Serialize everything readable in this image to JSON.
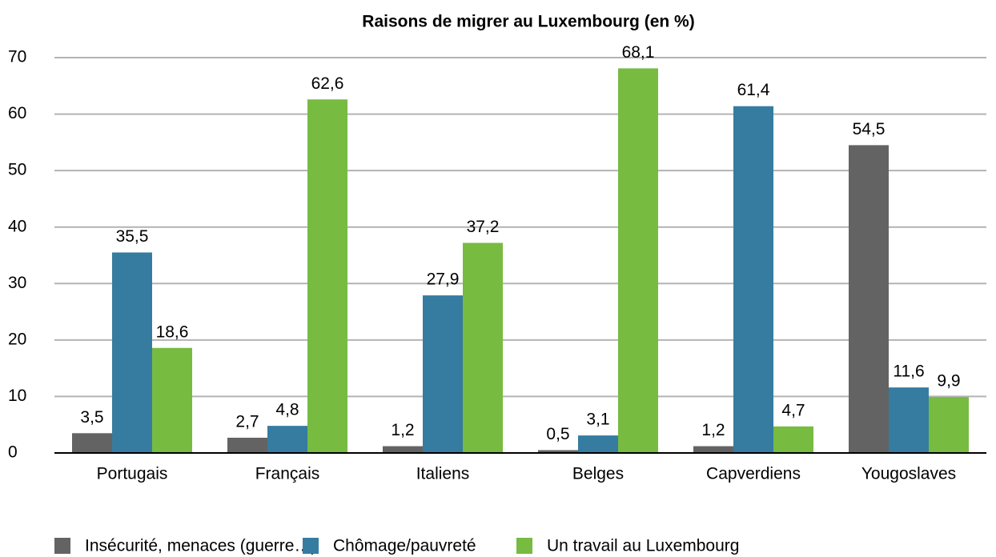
{
  "chart_data": {
    "type": "bar",
    "title": "Raisons de migrer au Luxembourg (en %)",
    "categories": [
      "Portugais",
      "Français",
      "Italiens",
      "Belges",
      "Capverdiens",
      "Yougoslaves"
    ],
    "series": [
      {
        "name": "Insécurité, menaces (guerre…)",
        "color": "#636363",
        "values": [
          3.5,
          2.7,
          1.2,
          0.5,
          1.2,
          54.5
        ],
        "value_labels": [
          "3,5",
          "2,7",
          "1,2",
          "0,5",
          "1,2",
          "54,5"
        ]
      },
      {
        "name": "Chômage/pauvreté",
        "color": "#357ca0",
        "values": [
          35.5,
          4.8,
          27.9,
          3.1,
          61.4,
          11.6
        ],
        "value_labels": [
          "35,5",
          "4,8",
          "27,9",
          "3,1",
          "61,4",
          "11,6"
        ]
      },
      {
        "name": "Un travail au Luxembourg",
        "color": "#77bb41",
        "values": [
          18.6,
          62.6,
          37.2,
          68.1,
          4.7,
          9.9
        ],
        "value_labels": [
          "18,6",
          "62,6",
          "37,2",
          "68,1",
          "4,7",
          "9,9"
        ]
      }
    ],
    "ylim": [
      0,
      70
    ],
    "yticks": [
      0,
      10,
      20,
      30,
      40,
      50,
      60,
      70
    ],
    "grid": true,
    "legend": "bottom"
  }
}
